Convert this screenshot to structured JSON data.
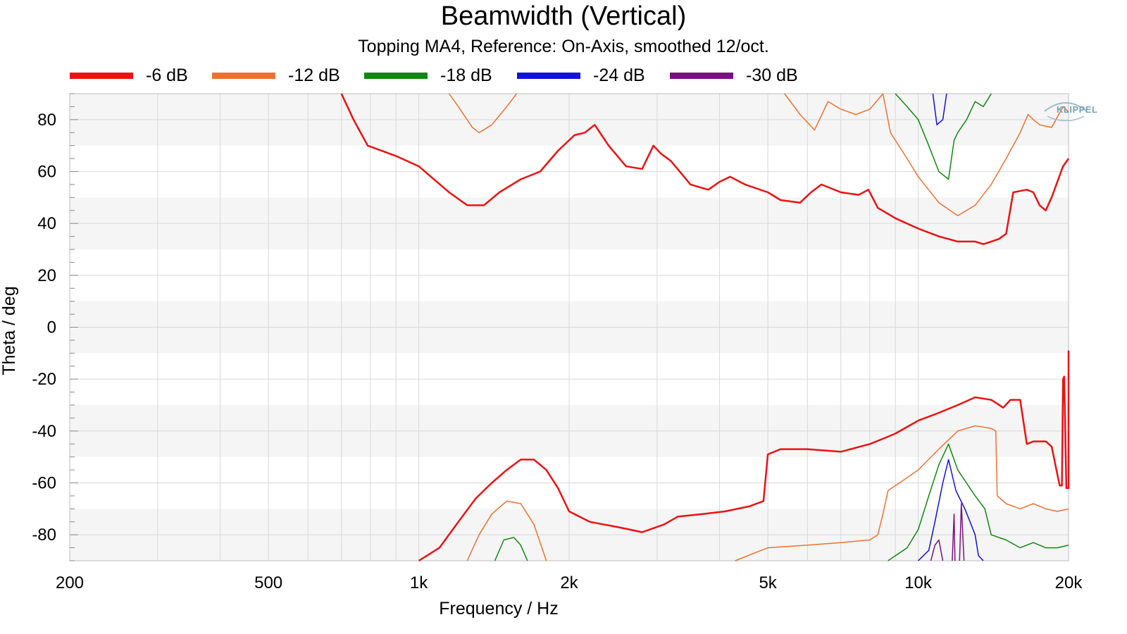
{
  "chart_data": {
    "type": "line",
    "title": "Beamwidth (Vertical)",
    "subtitle": "Topping MA4, Reference: On-Axis, smoothed 12/oct.",
    "xlabel": "Frequency / Hz",
    "ylabel": "Theta / deg",
    "xscale": "log",
    "xlim": [
      200,
      20000
    ],
    "ylim": [
      -90,
      90
    ],
    "x_ticks": [
      200,
      500,
      1000,
      2000,
      5000,
      10000,
      20000
    ],
    "x_tick_labels": [
      "200",
      "500",
      "1k",
      "2k",
      "5k",
      "10k",
      "20k"
    ],
    "y_ticks": [
      -80,
      -60,
      -40,
      -20,
      0,
      20,
      40,
      60,
      80
    ],
    "y_tick_labels": [
      "-80",
      "-60",
      "-40",
      "-20",
      "0",
      "20",
      "40",
      "60",
      "80"
    ],
    "grid": true,
    "legend_position": "top",
    "series": [
      {
        "name": "-6 dB",
        "color": "#ee1111",
        "width": 2.5,
        "segments": [
          [
            [
              700,
              90
            ],
            [
              740,
              80
            ],
            [
              790,
              70
            ],
            [
              900,
              66
            ],
            [
              1000,
              62
            ],
            [
              1150,
              52
            ],
            [
              1250,
              47
            ],
            [
              1350,
              47
            ],
            [
              1450,
              52
            ],
            [
              1600,
              57
            ],
            [
              1750,
              60
            ],
            [
              1900,
              68
            ],
            [
              2050,
              74
            ],
            [
              2150,
              75
            ],
            [
              2250,
              78
            ],
            [
              2400,
              70
            ],
            [
              2600,
              62
            ],
            [
              2800,
              61
            ],
            [
              2950,
              70
            ],
            [
              3050,
              67
            ],
            [
              3200,
              64
            ],
            [
              3500,
              55
            ],
            [
              3800,
              53
            ],
            [
              4000,
              56
            ],
            [
              4200,
              58
            ],
            [
              4500,
              55
            ],
            [
              5000,
              52
            ],
            [
              5300,
              49
            ],
            [
              5800,
              48
            ],
            [
              6100,
              52
            ],
            [
              6400,
              55
            ],
            [
              7000,
              52
            ],
            [
              7600,
              51
            ],
            [
              7950,
              53
            ],
            [
              8300,
              46
            ],
            [
              9000,
              42
            ],
            [
              10000,
              38
            ],
            [
              11000,
              35
            ],
            [
              12000,
              33
            ],
            [
              13000,
              33
            ],
            [
              13500,
              32
            ],
            [
              14500,
              34
            ],
            [
              15000,
              36
            ],
            [
              15500,
              52
            ],
            [
              16500,
              53
            ],
            [
              17000,
              52
            ],
            [
              17500,
              47
            ],
            [
              18000,
              45
            ],
            [
              18500,
              50
            ],
            [
              19500,
              62
            ],
            [
              20000,
              65
            ]
          ],
          [
            [
              1000,
              -90
            ],
            [
              1100,
              -85
            ],
            [
              1200,
              -75
            ],
            [
              1300,
              -66
            ],
            [
              1400,
              -60
            ],
            [
              1500,
              -55
            ],
            [
              1600,
              -51
            ],
            [
              1700,
              -51
            ],
            [
              1800,
              -55
            ],
            [
              1900,
              -62
            ],
            [
              2000,
              -71
            ],
            [
              2200,
              -75
            ],
            [
              2500,
              -77
            ],
            [
              2800,
              -79
            ],
            [
              3100,
              -76
            ],
            [
              3300,
              -73
            ],
            [
              3700,
              -72
            ],
            [
              4100,
              -71
            ],
            [
              4600,
              -69
            ],
            [
              4900,
              -67
            ],
            [
              5000,
              -49
            ],
            [
              5300,
              -47
            ],
            [
              6000,
              -47
            ],
            [
              7000,
              -48
            ],
            [
              8000,
              -45
            ],
            [
              8500,
              -43
            ],
            [
              9000,
              -41
            ],
            [
              10000,
              -36
            ],
            [
              11000,
              -33
            ],
            [
              12000,
              -30
            ],
            [
              13000,
              -27
            ],
            [
              14000,
              -28
            ],
            [
              14800,
              -31
            ],
            [
              15300,
              -28
            ],
            [
              16000,
              -28
            ],
            [
              16500,
              -45
            ],
            [
              17000,
              -44
            ],
            [
              18000,
              -44
            ],
            [
              18500,
              -46
            ],
            [
              19200,
              -61
            ],
            [
              19400,
              -61
            ],
            [
              19500,
              -20
            ],
            [
              19600,
              -19
            ],
            [
              19800,
              -62
            ],
            [
              20000,
              -62
            ],
            [
              20000,
              -9
            ]
          ]
        ]
      },
      {
        "name": "-12 dB",
        "color": "#f07030",
        "width": 1.5,
        "segments": [
          [
            [
              1150,
              90
            ],
            [
              1200,
              85
            ],
            [
              1280,
              77
            ],
            [
              1320,
              75
            ],
            [
              1400,
              78
            ],
            [
              1500,
              85
            ],
            [
              1570,
              90
            ]
          ],
          [
            [
              8500,
              90
            ],
            [
              8800,
              75
            ],
            [
              9500,
              65
            ],
            [
              10000,
              58
            ],
            [
              11000,
              48
            ],
            [
              12000,
              43
            ],
            [
              13000,
              47
            ],
            [
              14000,
              55
            ],
            [
              15000,
              65
            ],
            [
              16000,
              75
            ],
            [
              16600,
              82
            ],
            [
              17000,
              80
            ],
            [
              17500,
              78
            ],
            [
              18500,
              77
            ],
            [
              19500,
              85
            ],
            [
              20000,
              83
            ]
          ],
          [
            [
              5400,
              90
            ],
            [
              5800,
              82
            ],
            [
              6200,
              76
            ],
            [
              6600,
              87
            ],
            [
              7000,
              84
            ],
            [
              7500,
              82
            ],
            [
              8000,
              84
            ],
            [
              8500,
              90
            ]
          ],
          [
            [
              1250,
              -90
            ],
            [
              1320,
              -80
            ],
            [
              1400,
              -72
            ],
            [
              1500,
              -67
            ],
            [
              1600,
              -68
            ],
            [
              1700,
              -76
            ],
            [
              1800,
              -90
            ]
          ],
          [
            [
              4300,
              -90
            ],
            [
              5000,
              -85
            ],
            [
              6000,
              -84
            ],
            [
              7000,
              -83
            ],
            [
              8000,
              -82
            ],
            [
              8300,
              -80
            ],
            [
              8500,
              -72
            ],
            [
              8700,
              -63
            ],
            [
              9500,
              -58
            ],
            [
              10000,
              -55
            ],
            [
              11000,
              -47
            ],
            [
              12000,
              -40
            ],
            [
              13000,
              -38
            ],
            [
              14000,
              -39
            ],
            [
              14300,
              -40
            ],
            [
              14400,
              -65
            ],
            [
              15000,
              -68
            ],
            [
              16000,
              -70
            ],
            [
              17000,
              -68
            ],
            [
              18000,
              -70
            ],
            [
              19000,
              -71
            ],
            [
              20000,
              -70
            ]
          ]
        ]
      },
      {
        "name": "-18 dB",
        "color": "#118811",
        "width": 1.5,
        "segments": [
          [
            [
              9000,
              90
            ],
            [
              9500,
              85
            ],
            [
              10000,
              80
            ],
            [
              10500,
              70
            ],
            [
              11000,
              60
            ],
            [
              11500,
              57
            ],
            [
              11800,
              72
            ],
            [
              12000,
              75
            ],
            [
              12500,
              80
            ],
            [
              13000,
              87
            ],
            [
              13500,
              85
            ],
            [
              14000,
              90
            ]
          ],
          [
            [
              1420,
              -90
            ],
            [
              1480,
              -82
            ],
            [
              1550,
              -81
            ],
            [
              1600,
              -84
            ],
            [
              1650,
              -90
            ]
          ],
          [
            [
              8700,
              -90
            ],
            [
              9500,
              -85
            ],
            [
              10000,
              -78
            ],
            [
              10500,
              -65
            ],
            [
              11000,
              -53
            ],
            [
              11500,
              -45
            ],
            [
              12000,
              -55
            ],
            [
              13000,
              -65
            ],
            [
              13600,
              -70
            ],
            [
              14000,
              -80
            ],
            [
              15000,
              -82
            ],
            [
              16000,
              -85
            ],
            [
              17000,
              -83
            ],
            [
              18000,
              -85
            ],
            [
              19000,
              -85
            ],
            [
              20000,
              -84
            ]
          ]
        ]
      },
      {
        "name": "-24 dB",
        "color": "#1111dd",
        "width": 1.5,
        "segments": [
          [
            [
              10700,
              90
            ],
            [
              10900,
              78
            ],
            [
              11200,
              80
            ],
            [
              11400,
              90
            ]
          ],
          [
            [
              10000,
              -90
            ],
            [
              10500,
              -86
            ],
            [
              10800,
              -75
            ],
            [
              11200,
              -60
            ],
            [
              11500,
              -51
            ],
            [
              11900,
              -63
            ],
            [
              12400,
              -70
            ],
            [
              12700,
              -75
            ],
            [
              13000,
              -80
            ],
            [
              13200,
              -88
            ],
            [
              13500,
              -90
            ]
          ]
        ]
      },
      {
        "name": "-30 dB",
        "color": "#7a1080",
        "width": 1.5,
        "segments": [
          [
            [
              10600,
              -90
            ],
            [
              10800,
              -84
            ],
            [
              11000,
              -82
            ],
            [
              11200,
              -90
            ]
          ],
          [
            [
              11700,
              -90
            ],
            [
              11800,
              -72
            ],
            [
              11850,
              -90
            ]
          ],
          [
            [
              12100,
              -90
            ],
            [
              12200,
              -68
            ],
            [
              12350,
              -90
            ]
          ]
        ]
      }
    ]
  },
  "logo": {
    "text": "KLIPPEL"
  },
  "theme": {
    "grid_color": "#d8d8d8",
    "band_color": "#f5f5f5"
  }
}
